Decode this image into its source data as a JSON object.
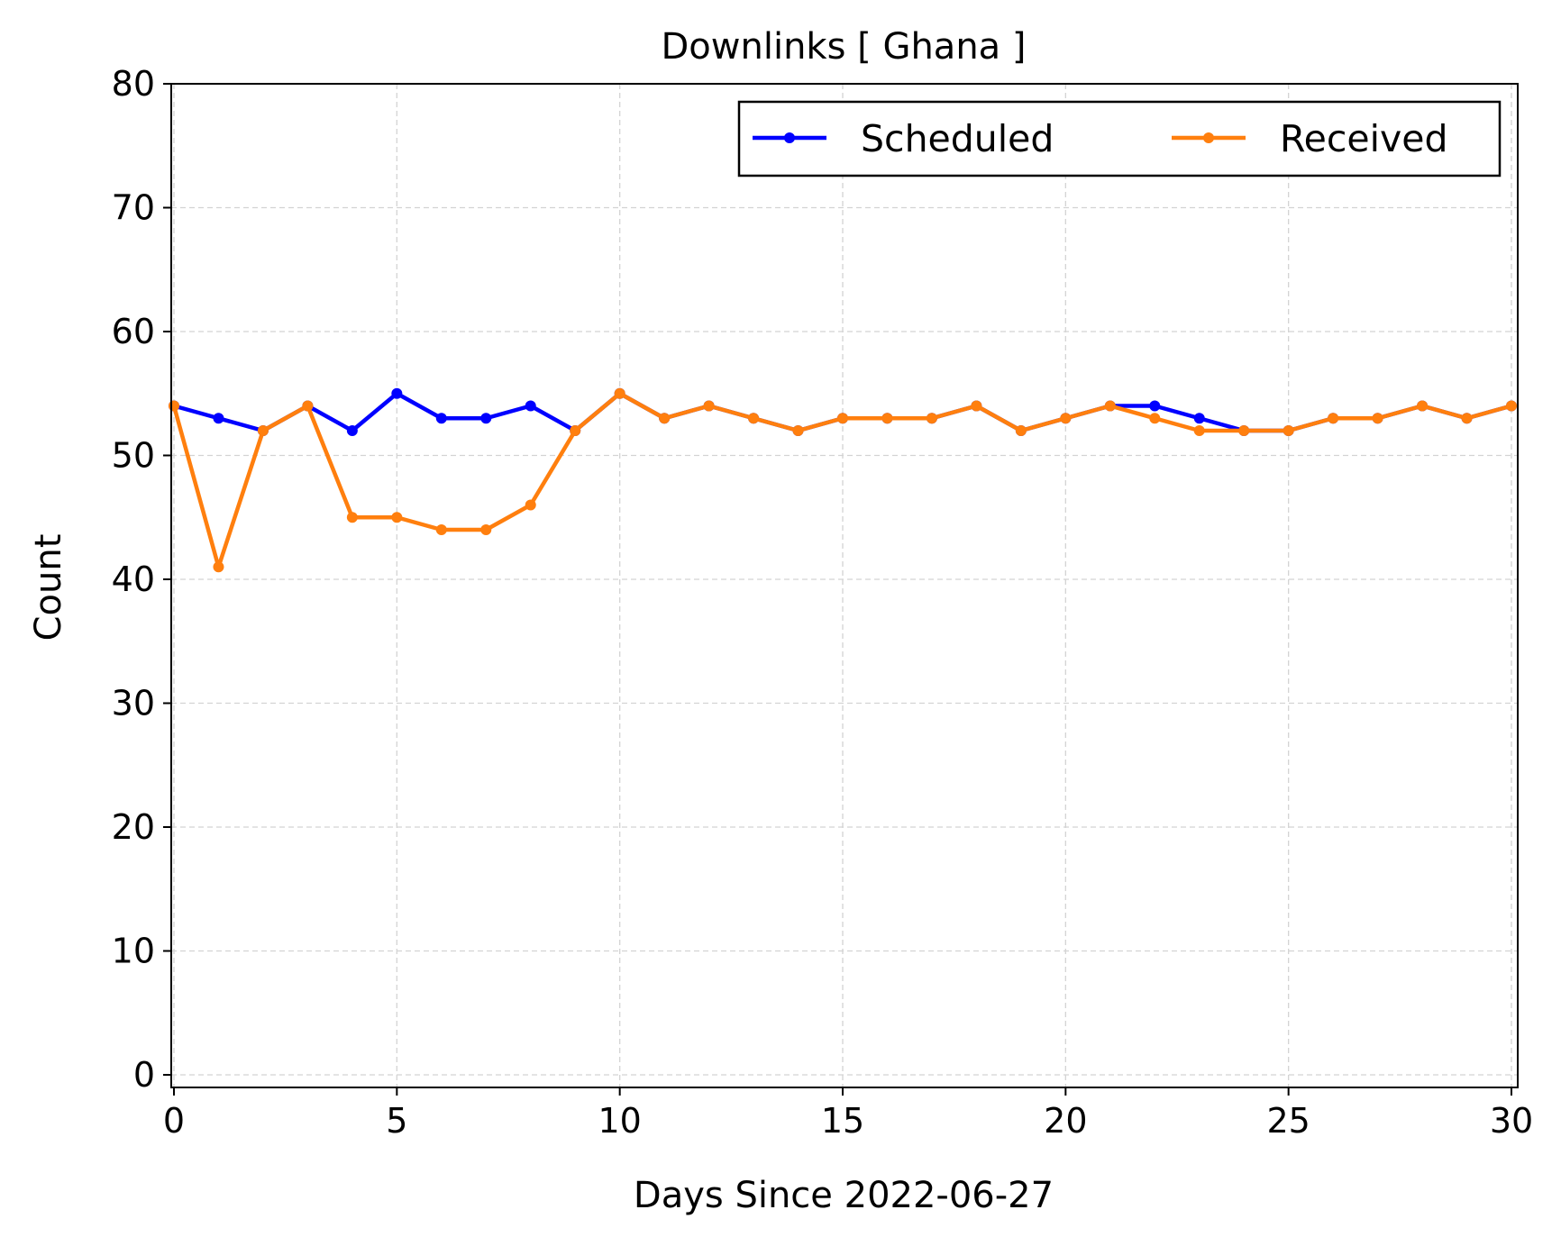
{
  "chart_data": {
    "type": "line",
    "title": "Downlinks [ Ghana ]",
    "xlabel": "Days Since 2022-06-27",
    "ylabel": "Count",
    "xlim": [
      0,
      30
    ],
    "ylim": [
      0,
      80
    ],
    "xticks": [
      0,
      5,
      10,
      15,
      20,
      25,
      30
    ],
    "yticks": [
      0,
      10,
      20,
      30,
      40,
      50,
      60,
      70,
      80
    ],
    "grid": true,
    "legend_position": "top-right",
    "x": [
      0,
      1,
      2,
      3,
      4,
      5,
      6,
      7,
      8,
      9,
      10,
      11,
      12,
      13,
      14,
      15,
      16,
      17,
      18,
      19,
      20,
      21,
      22,
      23,
      24,
      25,
      26,
      27,
      28,
      29,
      30
    ],
    "series": [
      {
        "name": "Scheduled",
        "color": "#0000ff",
        "values": [
          54,
          53,
          52,
          54,
          52,
          55,
          53,
          53,
          54,
          52,
          55,
          53,
          54,
          53,
          52,
          53,
          53,
          53,
          54,
          52,
          53,
          54,
          54,
          53,
          52,
          52,
          53,
          53,
          54,
          53,
          54
        ]
      },
      {
        "name": "Received",
        "color": "#ff7f0e",
        "values": [
          54,
          41,
          52,
          54,
          45,
          45,
          44,
          44,
          46,
          52,
          55,
          53,
          54,
          53,
          52,
          53,
          53,
          53,
          54,
          52,
          53,
          54,
          53,
          52,
          52,
          52,
          53,
          53,
          54,
          53,
          54
        ]
      }
    ]
  }
}
